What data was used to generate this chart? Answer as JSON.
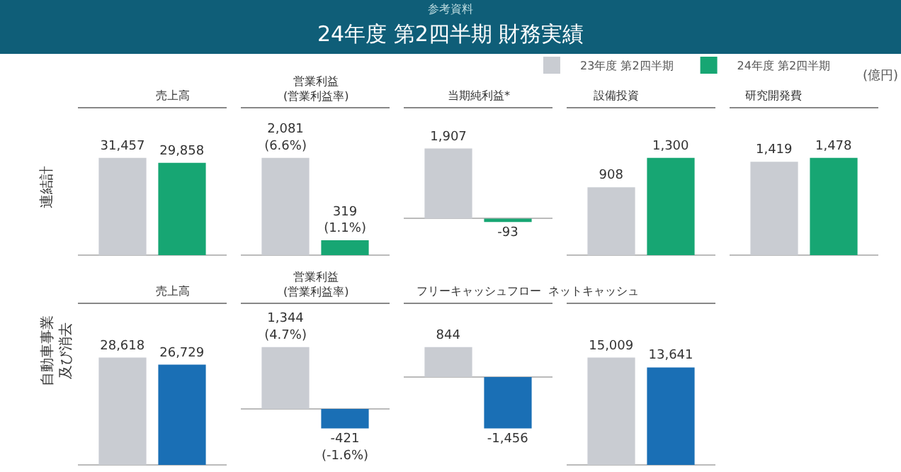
{
  "chart_data": [
    {
      "type": "other",
      "title": "24年度 第2四半期 財務実績",
      "subtitle": "参考資料"
    },
    {
      "type": "bar",
      "ylabel": "連結計",
      "xlabel": "売上高",
      "categories": [
        null
      ],
      "legend": "top right",
      "annotations": [
        "(億円)"
      ],
      "series": [
        {
          "name": "23年度 第2四半期",
          "color": "#c9ccd2",
          "values": [
            31457
          ],
          "value_labels": [
            "31,457"
          ]
        },
        {
          "name": "24年度 第2四半期",
          "color": "#17a673",
          "values": [
            29858
          ],
          "value_labels": [
            "29,858"
          ]
        }
      ]
    },
    {
      "type": "bar",
      "xlabel": "営業利益\n(営業利益率)",
      "categories": [
        null
      ],
      "series": [
        {
          "color": "#c9ccd2",
          "values": [
            2081
          ],
          "value_labels": [
            "2,081\n(6.6%)"
          ]
        },
        {
          "color": "#17a673",
          "values": [
            319
          ],
          "value_labels": [
            "319\n(1.1%)"
          ]
        }
      ]
    },
    {
      "type": "bar",
      "xlabel": "当期純利益*",
      "categories": [
        null
      ],
      "series": [
        {
          "color": "#c9ccd2",
          "values": [
            1907
          ],
          "value_labels": [
            "1,907"
          ]
        },
        {
          "color": "#17a673",
          "values": [
            -93
          ],
          "value_labels": [
            "-93"
          ]
        }
      ]
    },
    {
      "type": "bar",
      "xlabel": "設備投資",
      "categories": [
        null
      ],
      "series": [
        {
          "color": "#c9ccd2",
          "values": [
            908
          ],
          "value_labels": [
            "908"
          ]
        },
        {
          "color": "#17a673",
          "values": [
            1300
          ],
          "value_labels": [
            "1,300"
          ]
        }
      ]
    },
    {
      "type": "bar",
      "xlabel": "研究開発費",
      "categories": [
        null
      ],
      "series": [
        {
          "color": "#c9ccd2",
          "values": [
            1419
          ],
          "value_labels": [
            "1,419"
          ]
        },
        {
          "color": "#17a673",
          "values": [
            1478
          ],
          "value_labels": [
            "1,478"
          ]
        }
      ]
    },
    {
      "type": "bar",
      "ylabel": "自動車事業及び消去",
      "xlabel": "売上高",
      "categories": [
        null
      ],
      "series": [
        {
          "color": "#c9ccd2",
          "values": [
            28618
          ],
          "value_labels": [
            "28,618"
          ]
        },
        {
          "color": "#1a6fb5",
          "values": [
            26729
          ],
          "value_labels": [
            "26,729"
          ]
        }
      ]
    },
    {
      "type": "bar",
      "xlabel": "営業利益\n(営業利益率)",
      "categories": [
        null
      ],
      "series": [
        {
          "color": "#c9ccd2",
          "values": [
            1344
          ],
          "value_labels": [
            "1,344\n(4.7%)"
          ]
        },
        {
          "color": "#1a6fb5",
          "values": [
            -421
          ],
          "value_labels": [
            "-421\n(-1.6%)"
          ]
        }
      ]
    },
    {
      "type": "bar",
      "xlabel": "フリーキャッシュフロー",
      "categories": [
        null
      ],
      "series": [
        {
          "color": "#c9ccd2",
          "values": [
            844
          ],
          "value_labels": [
            "844"
          ]
        },
        {
          "color": "#1a6fb5",
          "values": [
            -1456
          ],
          "value_labels": [
            "-1,456"
          ]
        }
      ]
    },
    {
      "type": "bar",
      "xlabel": "ネットキャッシュ",
      "categories": [
        null
      ],
      "series": [
        {
          "color": "#c9ccd2",
          "values": [
            15009
          ],
          "value_labels": [
            "15,009"
          ]
        },
        {
          "color": "#1a6fb5",
          "values": [
            13641
          ],
          "value_labels": [
            "13,641"
          ]
        }
      ]
    }
  ]
}
